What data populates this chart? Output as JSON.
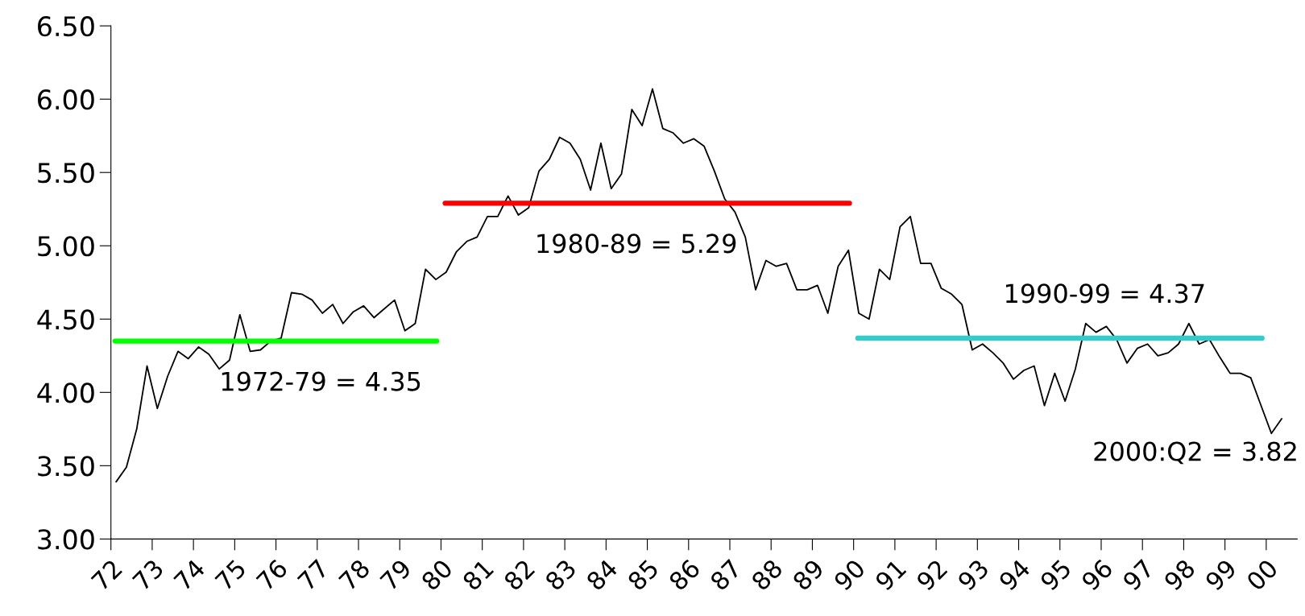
{
  "chart_data": {
    "type": "line",
    "x": [
      1972.125,
      1972.375,
      1972.625,
      1972.875,
      1973.125,
      1973.375,
      1973.625,
      1973.875,
      1974.125,
      1974.375,
      1974.625,
      1974.875,
      1975.125,
      1975.375,
      1975.625,
      1975.875,
      1976.125,
      1976.375,
      1976.625,
      1976.875,
      1977.125,
      1977.375,
      1977.625,
      1977.875,
      1978.125,
      1978.375,
      1978.625,
      1978.875,
      1979.125,
      1979.375,
      1979.625,
      1979.875,
      1980.125,
      1980.375,
      1980.625,
      1980.875,
      1981.125,
      1981.375,
      1981.625,
      1981.875,
      1982.125,
      1982.375,
      1982.625,
      1982.875,
      1983.125,
      1983.375,
      1983.625,
      1983.875,
      1984.125,
      1984.375,
      1984.625,
      1984.875,
      1985.125,
      1985.375,
      1985.625,
      1985.875,
      1986.125,
      1986.375,
      1986.625,
      1986.875,
      1987.125,
      1987.375,
      1987.625,
      1987.875,
      1988.125,
      1988.375,
      1988.625,
      1988.875,
      1989.125,
      1989.375,
      1989.625,
      1989.875,
      1990.125,
      1990.375,
      1990.625,
      1990.875,
      1991.125,
      1991.375,
      1991.625,
      1991.875,
      1992.125,
      1992.375,
      1992.625,
      1992.875,
      1993.125,
      1993.375,
      1993.625,
      1993.875,
      1994.125,
      1994.375,
      1994.625,
      1994.875,
      1995.125,
      1995.375,
      1995.625,
      1995.875,
      1996.125,
      1996.375,
      1996.625,
      1996.875,
      1997.125,
      1997.375,
      1997.625,
      1997.875,
      1998.125,
      1998.375,
      1998.625,
      1998.875,
      1999.125,
      1999.375,
      1999.625,
      1999.875,
      2000.125,
      2000.375
    ],
    "series": [
      {
        "color": "#000000",
        "values": [
          3.39,
          3.49,
          3.75,
          4.18,
          3.89,
          4.11,
          4.28,
          4.23,
          4.31,
          4.26,
          4.16,
          4.22,
          4.53,
          4.28,
          4.29,
          4.35,
          4.37,
          4.68,
          4.67,
          4.63,
          4.54,
          4.6,
          4.47,
          4.55,
          4.59,
          4.51,
          4.57,
          4.63,
          4.42,
          4.47,
          4.84,
          4.77,
          4.82,
          4.96,
          5.03,
          5.06,
          5.2,
          5.2,
          5.34,
          5.21,
          5.26,
          5.51,
          5.59,
          5.74,
          5.7,
          5.59,
          5.38,
          5.7,
          5.39,
          5.49,
          5.93,
          5.82,
          6.07,
          5.8,
          5.77,
          5.7,
          5.73,
          5.68,
          5.51,
          5.32,
          5.23,
          5.06,
          4.7,
          4.9,
          4.86,
          4.88,
          4.7,
          4.7,
          4.73,
          4.54,
          4.86,
          4.97,
          4.54,
          4.5,
          4.84,
          4.77,
          5.13,
          5.2,
          4.88,
          4.88,
          4.71,
          4.67,
          4.6,
          4.29,
          4.33,
          4.27,
          4.2,
          4.09,
          4.15,
          4.18,
          3.91,
          4.13,
          3.94,
          4.16,
          4.47,
          4.41,
          4.45,
          4.36,
          4.2,
          4.3,
          4.33,
          4.25,
          4.27,
          4.33,
          4.47,
          4.33,
          4.36,
          4.24,
          4.13,
          4.13,
          4.1,
          3.91,
          3.72,
          3.82
        ]
      },
      {
        "type": "line",
        "name": "1972-79 = 4.35",
        "color": "#00ff00",
        "x": [
          1972.1,
          1979.9
        ],
        "values": [
          4.35,
          4.35
        ]
      },
      {
        "type": "line",
        "name": "1980-89 = 5.29",
        "color": "#ff0000",
        "x": [
          1980.1,
          1989.9
        ],
        "values": [
          5.29,
          5.29
        ]
      },
      {
        "type": "line",
        "name": "1990-99 = 4.37",
        "color": "#33cccc",
        "x": [
          1990.1,
          1999.9
        ],
        "values": [
          4.37,
          4.37
        ]
      }
    ],
    "annotations": [
      {
        "text": "2000:Q2 = 3.82",
        "x": 2000.375,
        "y": 3.82
      }
    ],
    "xlim": [
      1972,
      2000.75
    ],
    "ylim": [
      3.0,
      6.5
    ],
    "yticks": [
      {
        "value": 3.0,
        "label": "3.00"
      },
      {
        "value": 3.5,
        "label": "3.50"
      },
      {
        "value": 4.0,
        "label": "4.00"
      },
      {
        "value": 4.5,
        "label": "4.50"
      },
      {
        "value": 5.0,
        "label": "5.00"
      },
      {
        "value": 5.5,
        "label": "5.50"
      },
      {
        "value": 6.0,
        "label": "6.00"
      },
      {
        "value": 6.5,
        "label": "6.50"
      }
    ],
    "xticks": [
      {
        "value": 1972,
        "label": "72"
      },
      {
        "value": 1973,
        "label": "73"
      },
      {
        "value": 1974,
        "label": "74"
      },
      {
        "value": 1975,
        "label": "75"
      },
      {
        "value": 1976,
        "label": "76"
      },
      {
        "value": 1977,
        "label": "77"
      },
      {
        "value": 1978,
        "label": "78"
      },
      {
        "value": 1979,
        "label": "79"
      },
      {
        "value": 1980,
        "label": "80"
      },
      {
        "value": 1981,
        "label": "81"
      },
      {
        "value": 1982,
        "label": "82"
      },
      {
        "value": 1983,
        "label": "83"
      },
      {
        "value": 1984,
        "label": "84"
      },
      {
        "value": 1985,
        "label": "85"
      },
      {
        "value": 1986,
        "label": "86"
      },
      {
        "value": 1987,
        "label": "87"
      },
      {
        "value": 1988,
        "label": "88"
      },
      {
        "value": 1989,
        "label": "89"
      },
      {
        "value": 1990,
        "label": "90"
      },
      {
        "value": 1991,
        "label": "91"
      },
      {
        "value": 1992,
        "label": "92"
      },
      {
        "value": 1993,
        "label": "93"
      },
      {
        "value": 1994,
        "label": "94"
      },
      {
        "value": 1995,
        "label": "95"
      },
      {
        "value": 1996,
        "label": "96"
      },
      {
        "value": 1997,
        "label": "97"
      },
      {
        "value": 1998,
        "label": "98"
      },
      {
        "value": 1999,
        "label": "99"
      },
      {
        "value": 2000,
        "label": "00"
      }
    ],
    "grid": false
  }
}
